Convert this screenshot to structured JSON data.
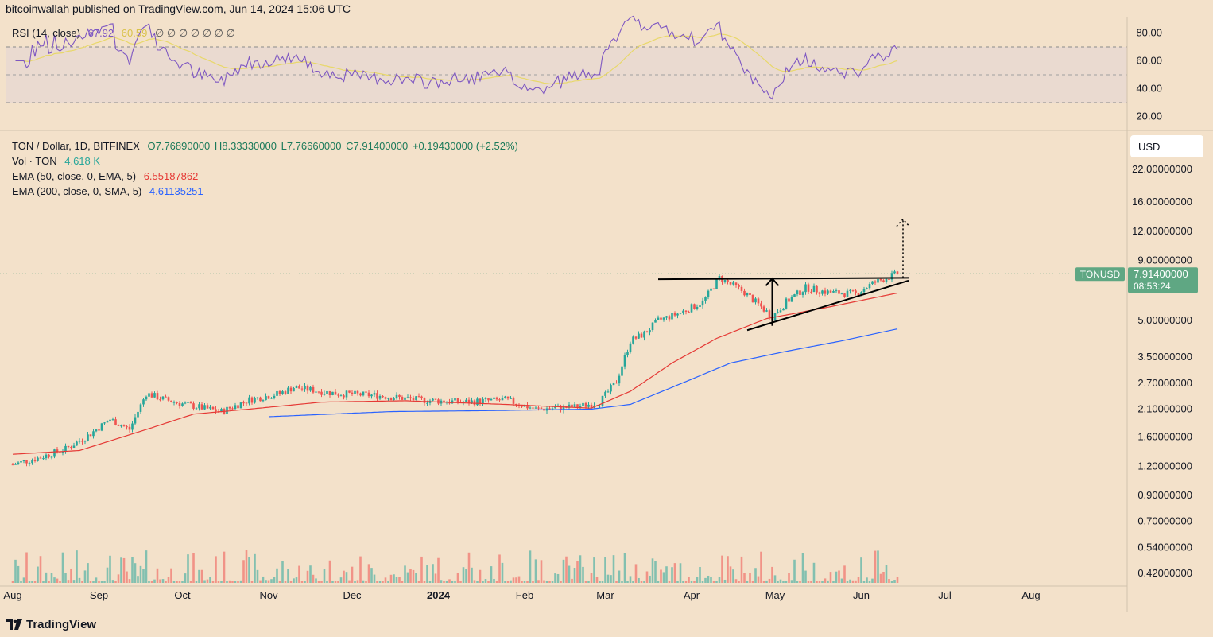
{
  "publisher": "bitcoinwallah published on TradingView.com, Jun 14, 2024 15:06 UTC",
  "brand": "TradingView",
  "currency_button": "USD",
  "colors": {
    "background": "#f3e1ca",
    "up": "#26a69a",
    "down": "#ef5350",
    "rsi_line": "#7e57c2",
    "rsi_ma": "#e8d86a",
    "ema50": "#e53935",
    "ema200": "#2962ff",
    "price_tag": "#5fa783"
  },
  "rsi": {
    "title": "RSI (14, close)",
    "value": "67.92",
    "ma_value": "60.59",
    "placeholders": "∅ ∅ ∅ ∅ ∅ ∅ ∅",
    "axis_labels": [
      "80.00",
      "60.00",
      "40.00",
      "20.00"
    ]
  },
  "legend": {
    "symbol": "TON / Dollar, 1D, BITFINEX",
    "open": "O7.76890000",
    "high": "H8.33330000",
    "low": "L7.76660000",
    "close": "C7.91400000",
    "change": "+0.19430000 (+2.52%)",
    "vol_label": "Vol · TON",
    "vol_value": "4.618 K",
    "ema50_label": "EMA (50, close, 0, EMA, 5)",
    "ema50_value": "6.55187862",
    "ema200_label": "EMA (200, close, 0, SMA, 5)",
    "ema200_value": "4.61135251"
  },
  "price_tag": {
    "symbol": "TONUSD",
    "price": "7.91400000",
    "countdown": "08:53:24"
  },
  "chart_data": {
    "type": "candlestick",
    "y_scale": "log",
    "y_tick_labels": [
      "22.00000000",
      "16.00000000",
      "12.00000000",
      "9.00000000",
      "5.00000000",
      "3.50000000",
      "2.70000000",
      "2.10000000",
      "1.60000000",
      "1.20000000",
      "0.90000000",
      "0.70000000",
      "0.54000000",
      "0.42000000"
    ],
    "x_tick_labels": [
      "Aug",
      "Sep",
      "Oct",
      "Nov",
      "Dec",
      "2024",
      "Feb",
      "Mar",
      "Apr",
      "May",
      "Jun",
      "Jul",
      "Aug"
    ],
    "price_path": [
      {
        "date": "2023-08-01",
        "price": 1.22
      },
      {
        "date": "2023-08-10",
        "price": 1.3
      },
      {
        "date": "2023-08-20",
        "price": 1.42
      },
      {
        "date": "2023-08-28",
        "price": 1.62
      },
      {
        "date": "2023-09-05",
        "price": 1.9
      },
      {
        "date": "2023-09-12",
        "price": 1.72
      },
      {
        "date": "2023-09-18",
        "price": 2.45
      },
      {
        "date": "2023-09-25",
        "price": 2.3
      },
      {
        "date": "2023-10-02",
        "price": 2.2
      },
      {
        "date": "2023-10-15",
        "price": 2.05
      },
      {
        "date": "2023-10-25",
        "price": 2.3
      },
      {
        "date": "2023-11-05",
        "price": 2.45
      },
      {
        "date": "2023-11-10",
        "price": 2.6
      },
      {
        "date": "2023-11-25",
        "price": 2.45
      },
      {
        "date": "2023-12-10",
        "price": 2.4
      },
      {
        "date": "2023-12-25",
        "price": 2.3
      },
      {
        "date": "2024-01-10",
        "price": 2.25
      },
      {
        "date": "2024-01-25",
        "price": 2.3
      },
      {
        "date": "2024-02-05",
        "price": 2.1
      },
      {
        "date": "2024-02-20",
        "price": 2.15
      },
      {
        "date": "2024-02-28",
        "price": 2.25
      },
      {
        "date": "2024-03-05",
        "price": 2.75
      },
      {
        "date": "2024-03-10",
        "price": 4.1
      },
      {
        "date": "2024-03-15",
        "price": 4.4
      },
      {
        "date": "2024-03-20",
        "price": 5.0
      },
      {
        "date": "2024-03-28",
        "price": 5.4
      },
      {
        "date": "2024-04-05",
        "price": 6.0
      },
      {
        "date": "2024-04-11",
        "price": 7.6
      },
      {
        "date": "2024-04-20",
        "price": 6.6
      },
      {
        "date": "2024-04-30",
        "price": 5.2
      },
      {
        "date": "2024-05-05",
        "price": 6.0
      },
      {
        "date": "2024-05-12",
        "price": 6.9
      },
      {
        "date": "2024-05-20",
        "price": 6.6
      },
      {
        "date": "2024-05-30",
        "price": 6.5
      },
      {
        "date": "2024-06-05",
        "price": 7.2
      },
      {
        "date": "2024-06-14",
        "price": 7.91
      }
    ],
    "ema50": [
      {
        "date": "2023-08-01",
        "price": 1.35
      },
      {
        "date": "2023-08-25",
        "price": 1.4
      },
      {
        "date": "2023-09-20",
        "price": 1.75
      },
      {
        "date": "2023-10-05",
        "price": 2.0
      },
      {
        "date": "2023-10-25",
        "price": 2.1
      },
      {
        "date": "2023-11-20",
        "price": 2.25
      },
      {
        "date": "2023-12-20",
        "price": 2.28
      },
      {
        "date": "2024-01-25",
        "price": 2.2
      },
      {
        "date": "2024-02-25",
        "price": 2.12
      },
      {
        "date": "2024-03-10",
        "price": 2.5
      },
      {
        "date": "2024-03-25",
        "price": 3.3
      },
      {
        "date": "2024-04-10",
        "price": 4.2
      },
      {
        "date": "2024-04-28",
        "price": 5.1
      },
      {
        "date": "2024-05-20",
        "price": 5.7
      },
      {
        "date": "2024-06-14",
        "price": 6.55
      }
    ],
    "ema200": [
      {
        "date": "2023-11-01",
        "price": 1.95
      },
      {
        "date": "2023-12-15",
        "price": 2.05
      },
      {
        "date": "2024-01-20",
        "price": 2.07
      },
      {
        "date": "2024-02-25",
        "price": 2.1
      },
      {
        "date": "2024-03-10",
        "price": 2.2
      },
      {
        "date": "2024-03-25",
        "price": 2.6
      },
      {
        "date": "2024-04-15",
        "price": 3.3
      },
      {
        "date": "2024-05-05",
        "price": 3.7
      },
      {
        "date": "2024-05-25",
        "price": 4.1
      },
      {
        "date": "2024-06-14",
        "price": 4.61
      }
    ]
  }
}
